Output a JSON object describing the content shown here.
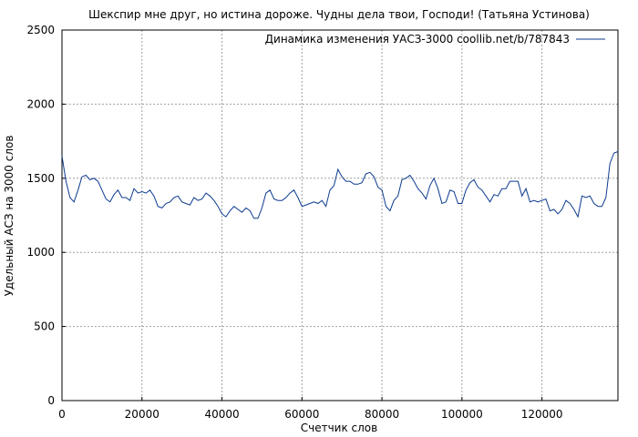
{
  "chart_data": {
    "type": "line",
    "title": "Шекспир мне друг, но истина дороже. Чудны дела твои, Господи! (Татьяна Устинова)",
    "xlabel": "Счетчик слов",
    "ylabel": "Удельный АСЗ на 3000 слов",
    "xlim": [
      0,
      139000
    ],
    "ylim": [
      0,
      2500
    ],
    "grid": true,
    "legend_position": "top-right",
    "x_ticks": [
      0,
      20000,
      40000,
      60000,
      80000,
      100000,
      120000
    ],
    "x_tick_labels": [
      "0",
      "20000",
      "40000",
      "60000",
      "80000",
      "100000",
      "120000"
    ],
    "y_ticks": [
      0,
      500,
      1000,
      1500,
      2000,
      2500
    ],
    "y_tick_labels": [
      "0",
      "500",
      "1000",
      "1500",
      "2000",
      "2500"
    ],
    "series": [
      {
        "name": "Динамика изменения УАСЗ-3000 coollib.net/b/787843",
        "color": "#0b3a8f",
        "points": [
          [
            0,
            1650
          ],
          [
            1000,
            1480
          ],
          [
            2000,
            1370
          ],
          [
            3000,
            1340
          ],
          [
            4000,
            1420
          ],
          [
            5000,
            1510
          ],
          [
            6000,
            1520
          ],
          [
            7000,
            1490
          ],
          [
            8000,
            1500
          ],
          [
            9000,
            1480
          ],
          [
            10000,
            1420
          ],
          [
            11000,
            1360
          ],
          [
            12000,
            1340
          ],
          [
            13000,
            1390
          ],
          [
            14000,
            1420
          ],
          [
            15000,
            1370
          ],
          [
            16000,
            1370
          ],
          [
            17000,
            1350
          ],
          [
            18000,
            1430
          ],
          [
            19000,
            1400
          ],
          [
            20000,
            1410
          ],
          [
            21000,
            1400
          ],
          [
            22000,
            1420
          ],
          [
            23000,
            1380
          ],
          [
            24000,
            1310
          ],
          [
            25000,
            1300
          ],
          [
            26000,
            1330
          ],
          [
            27000,
            1340
          ],
          [
            28000,
            1370
          ],
          [
            29000,
            1380
          ],
          [
            30000,
            1340
          ],
          [
            31000,
            1330
          ],
          [
            32000,
            1320
          ],
          [
            33000,
            1370
          ],
          [
            34000,
            1350
          ],
          [
            35000,
            1360
          ],
          [
            36000,
            1400
          ],
          [
            37000,
            1380
          ],
          [
            38000,
            1350
          ],
          [
            39000,
            1310
          ],
          [
            40000,
            1260
          ],
          [
            41000,
            1240
          ],
          [
            42000,
            1280
          ],
          [
            43000,
            1310
          ],
          [
            44000,
            1290
          ],
          [
            45000,
            1270
          ],
          [
            46000,
            1300
          ],
          [
            47000,
            1280
          ],
          [
            48000,
            1230
          ],
          [
            49000,
            1230
          ],
          [
            50000,
            1300
          ],
          [
            51000,
            1400
          ],
          [
            52000,
            1420
          ],
          [
            53000,
            1360
          ],
          [
            54000,
            1350
          ],
          [
            55000,
            1350
          ],
          [
            56000,
            1370
          ],
          [
            57000,
            1400
          ],
          [
            58000,
            1420
          ],
          [
            59000,
            1370
          ],
          [
            60000,
            1310
          ],
          [
            61000,
            1320
          ],
          [
            62000,
            1330
          ],
          [
            63000,
            1340
          ],
          [
            64000,
            1330
          ],
          [
            65000,
            1350
          ],
          [
            66000,
            1310
          ],
          [
            67000,
            1420
          ],
          [
            68000,
            1450
          ],
          [
            69000,
            1560
          ],
          [
            70000,
            1510
          ],
          [
            71000,
            1480
          ],
          [
            72000,
            1480
          ],
          [
            73000,
            1460
          ],
          [
            74000,
            1460
          ],
          [
            75000,
            1470
          ],
          [
            76000,
            1530
          ],
          [
            77000,
            1540
          ],
          [
            78000,
            1510
          ],
          [
            79000,
            1440
          ],
          [
            80000,
            1420
          ],
          [
            81000,
            1310
          ],
          [
            82000,
            1280
          ],
          [
            83000,
            1350
          ],
          [
            84000,
            1380
          ],
          [
            85000,
            1490
          ],
          [
            86000,
            1500
          ],
          [
            87000,
            1520
          ],
          [
            88000,
            1480
          ],
          [
            89000,
            1430
          ],
          [
            90000,
            1400
          ],
          [
            91000,
            1360
          ],
          [
            92000,
            1450
          ],
          [
            93000,
            1500
          ],
          [
            94000,
            1430
          ],
          [
            95000,
            1330
          ],
          [
            96000,
            1340
          ],
          [
            97000,
            1420
          ],
          [
            98000,
            1410
          ],
          [
            99000,
            1330
          ],
          [
            100000,
            1330
          ],
          [
            101000,
            1420
          ],
          [
            102000,
            1470
          ],
          [
            103000,
            1490
          ],
          [
            104000,
            1440
          ],
          [
            105000,
            1420
          ],
          [
            106000,
            1380
          ],
          [
            107000,
            1340
          ],
          [
            108000,
            1390
          ],
          [
            109000,
            1380
          ],
          [
            110000,
            1430
          ],
          [
            111000,
            1430
          ],
          [
            112000,
            1480
          ],
          [
            113000,
            1480
          ],
          [
            114000,
            1480
          ],
          [
            115000,
            1380
          ],
          [
            116000,
            1430
          ],
          [
            117000,
            1340
          ],
          [
            118000,
            1350
          ],
          [
            119000,
            1340
          ],
          [
            120000,
            1350
          ],
          [
            121000,
            1360
          ],
          [
            122000,
            1280
          ],
          [
            123000,
            1290
          ],
          [
            124000,
            1260
          ],
          [
            125000,
            1290
          ],
          [
            126000,
            1350
          ],
          [
            127000,
            1330
          ],
          [
            128000,
            1290
          ],
          [
            129000,
            1240
          ],
          [
            130000,
            1380
          ],
          [
            131000,
            1370
          ],
          [
            132000,
            1380
          ],
          [
            133000,
            1330
          ],
          [
            134000,
            1310
          ],
          [
            135000,
            1310
          ],
          [
            136000,
            1370
          ],
          [
            137000,
            1600
          ],
          [
            138000,
            1670
          ],
          [
            139000,
            1680
          ]
        ]
      }
    ]
  }
}
